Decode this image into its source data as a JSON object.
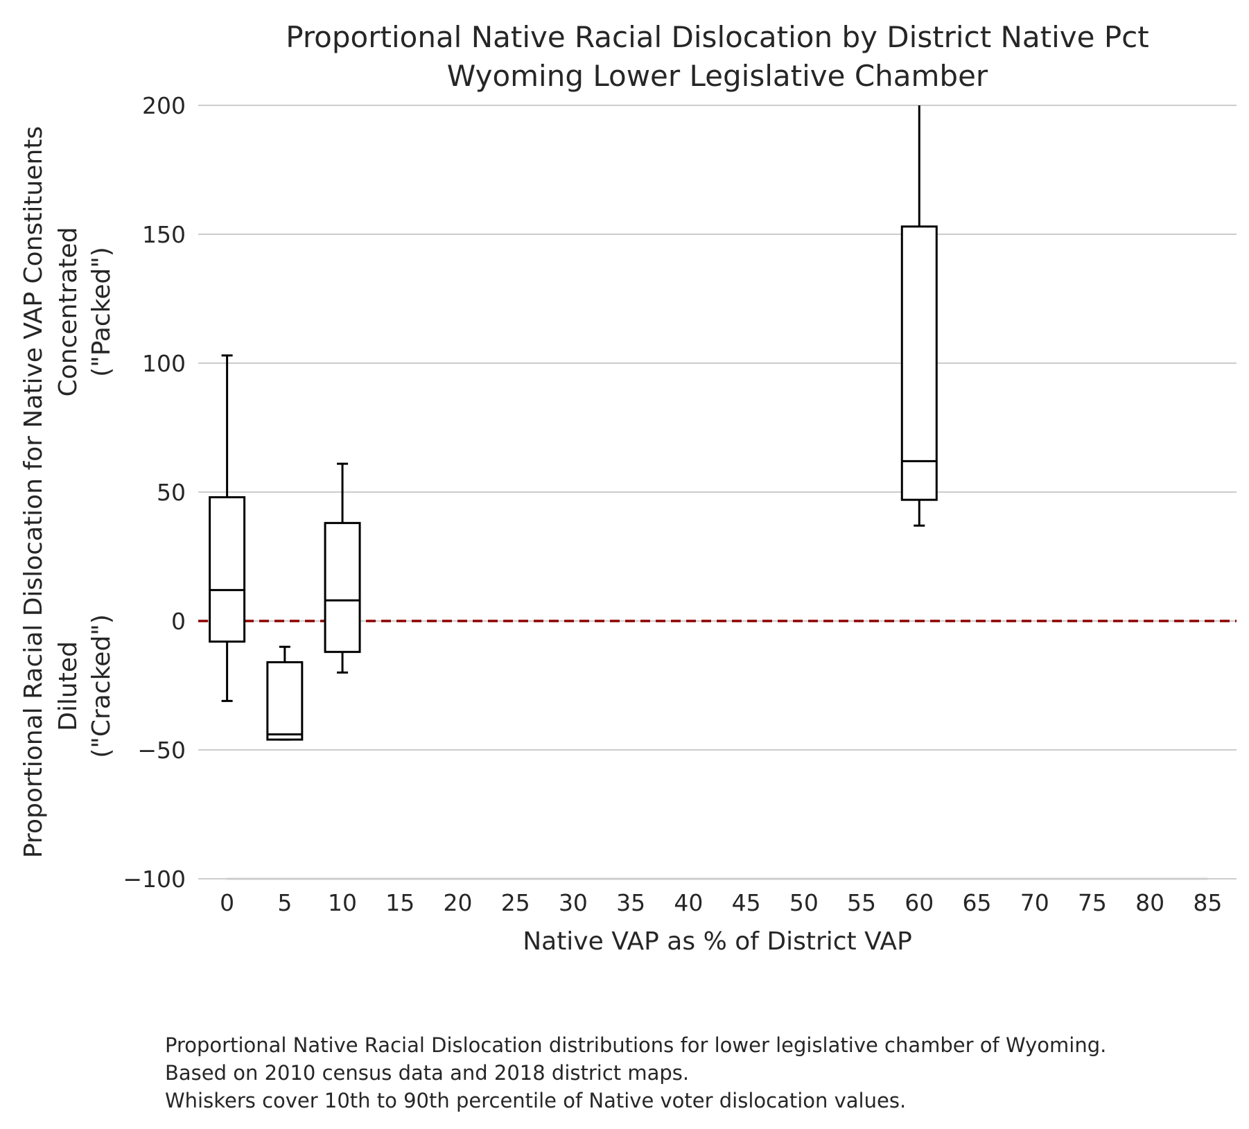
{
  "chart_data": {
    "type": "boxplot",
    "title": "Proportional Native Racial Dislocation by District Native Pct",
    "subtitle": "Wyoming Lower Legislative Chamber",
    "xlabel": "Native VAP as % of District VAP",
    "ylabel": "Proportional Racial Dislocation for Native VAP Constituents",
    "ylabel_top": [
      "Concentrated",
      "(\"Packed\")"
    ],
    "ylabel_bottom": [
      "Diluted",
      "(\"Cracked\")"
    ],
    "ylim": [
      -100,
      200
    ],
    "xlim": [
      -2.5,
      87.5
    ],
    "yticks": [
      -100,
      -50,
      0,
      50,
      100,
      150,
      200
    ],
    "yticklabels": [
      "−100",
      "−50",
      "0",
      "50",
      "100",
      "150",
      "200"
    ],
    "xticks": [
      0,
      5,
      10,
      15,
      20,
      25,
      30,
      35,
      40,
      45,
      50,
      55,
      60,
      65,
      70,
      75,
      80,
      85
    ],
    "xticklabels": [
      "0",
      "5",
      "10",
      "15",
      "20",
      "25",
      "30",
      "35",
      "40",
      "45",
      "50",
      "55",
      "60",
      "65",
      "70",
      "75",
      "80",
      "85"
    ],
    "grid": "horizontal",
    "reference_line": {
      "y": 0,
      "style": "dashed",
      "color": "#8b0000"
    },
    "box_color": "#000000",
    "boxes": [
      {
        "x": 0,
        "whisker_low": -31,
        "q1": -8,
        "median": 12,
        "q3": 48,
        "whisker_high": 103
      },
      {
        "x": 5,
        "whisker_low": -46,
        "q1": -46,
        "median": -44,
        "q3": -16,
        "whisker_high": -10
      },
      {
        "x": 10,
        "whisker_low": -20,
        "q1": -12,
        "median": 8,
        "q3": 38,
        "whisker_high": 61
      },
      {
        "x": 60,
        "whisker_low": 37,
        "q1": 47,
        "median": 62,
        "q3": 153,
        "whisker_high": 200
      }
    ]
  },
  "caption": [
    "Proportional Native Racial Dislocation distributions for lower legislative chamber of Wyoming.",
    "Based on 2010 census data and 2018 district maps.",
    "Whiskers cover 10th to 90th percentile of Native voter dislocation values."
  ]
}
